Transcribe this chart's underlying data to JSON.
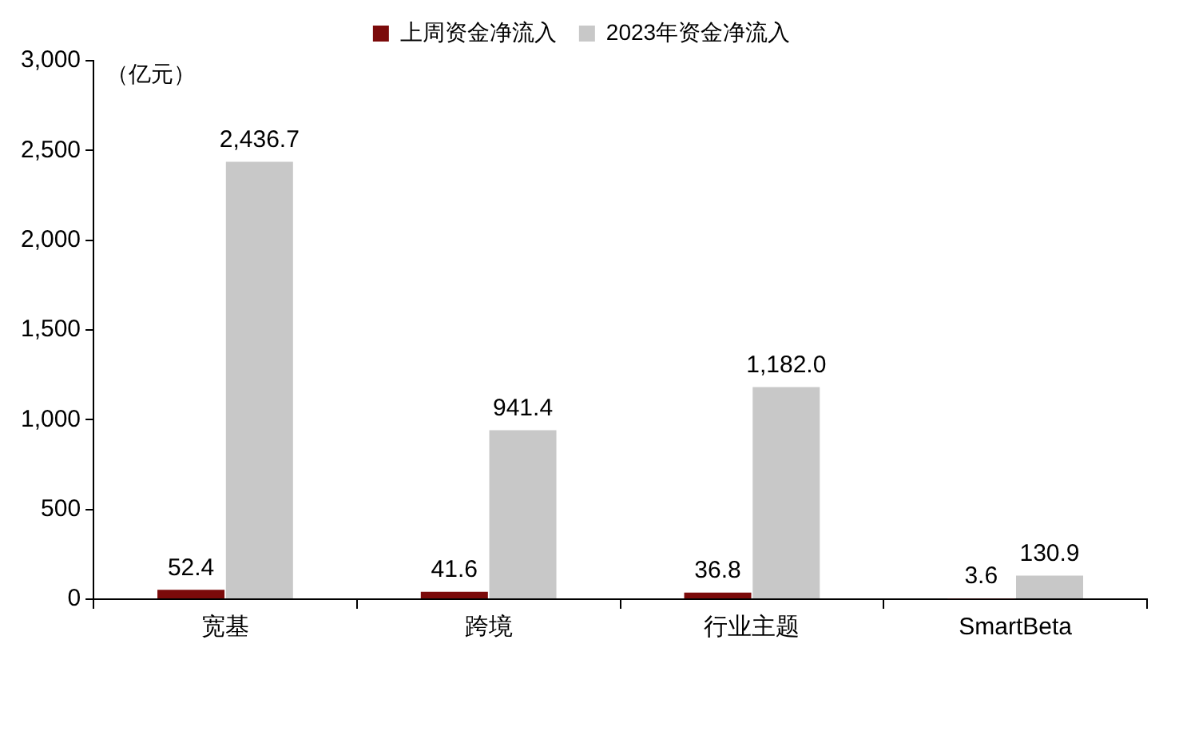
{
  "chart_data": {
    "type": "bar",
    "ylabel": "（亿元）",
    "categories": [
      "宽基",
      "跨境",
      "行业主题",
      "SmartBeta"
    ],
    "series": [
      {
        "name": "上周资金净流入",
        "color": "#7b0a0a",
        "values": [
          52.4,
          41.6,
          36.8,
          3.6
        ],
        "value_labels": [
          "52.4",
          "41.6",
          "36.8",
          "3.6"
        ]
      },
      {
        "name": "2023年资金净流入",
        "color": "#c8c8c8",
        "values": [
          2436.7,
          941.4,
          1182.0,
          130.9
        ],
        "value_labels": [
          "2,436.7",
          "941.4",
          "1,182.0",
          "130.9"
        ]
      }
    ],
    "ylim": [
      0,
      3000
    ],
    "yticks": [
      0,
      500,
      {
        "value": 1000,
        "label": "1,000"
      },
      {
        "value": 1500,
        "label": "1,500"
      },
      {
        "value": 2000,
        "label": "2,000"
      },
      {
        "value": 2500,
        "label": "2,500"
      },
      {
        "value": 3000,
        "label": "3,000"
      }
    ],
    "grid": false,
    "legend": "top"
  }
}
